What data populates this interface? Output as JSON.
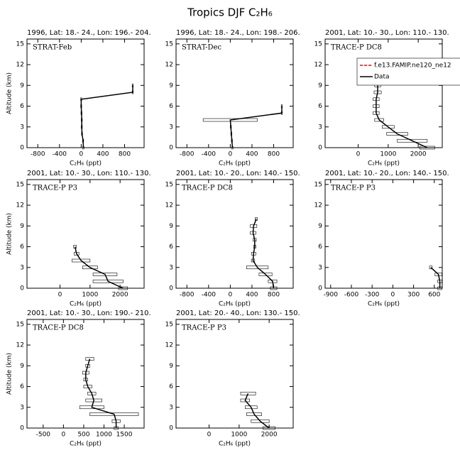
{
  "title": "Tropics DJF C₂H₆",
  "chart_data": [
    {
      "type": "line",
      "title": "1996, Lat: 18.- 24., Lon: 196.- 204.",
      "label": "STRAT-Feb",
      "xlabel": "C₂H₆ (ppt)",
      "ylabel": "Altitude (km)",
      "xlim": [
        -1000,
        1160
      ],
      "xticks": [
        -800,
        -400,
        0,
        400,
        800
      ],
      "ylim": [
        0,
        15.7
      ],
      "yticks": [
        0,
        3,
        6,
        9,
        12,
        15
      ],
      "series": [
        {
          "color": "#000000",
          "x": [
            40,
            35,
            15,
            10,
            10,
            5,
            0,
            0,
            950,
            950
          ],
          "values": [
            0,
            1,
            2,
            3,
            4,
            5,
            6,
            7,
            8,
            9
          ],
          "xerr": [
            10,
            10,
            10,
            10,
            10,
            10,
            10,
            10,
            10,
            10
          ]
        }
      ]
    },
    {
      "type": "line",
      "title": "1996, Lat: 18.- 24., Lon: 198.- 206.",
      "label": "STRAT-Dec",
      "xlabel": "C₂H₆ (ppt)",
      "xlim": [
        -1000,
        1160
      ],
      "xticks": [
        -800,
        -400,
        0,
        400,
        800
      ],
      "ylim": [
        0,
        15.7
      ],
      "yticks": [
        0,
        3,
        6,
        9,
        12,
        15
      ],
      "series": [
        {
          "color": "#000000",
          "x": [
            40,
            30,
            20,
            10,
            0,
            950,
            950
          ],
          "values": [
            0,
            1,
            2,
            3,
            4,
            5,
            6
          ],
          "xerr": [
            10,
            10,
            10,
            10,
            500,
            10,
            10
          ]
        }
      ]
    },
    {
      "type": "line",
      "title": "2001, Lat: 10.- 30., Lon: 110.- 130.",
      "label": "TRACE-P DC8",
      "xlabel": "C₂H₆ (ppt)",
      "legend": "upper right",
      "xlim": [
        -1100,
        2800
      ],
      "xticks": [
        0,
        1000,
        2000
      ],
      "ylim": [
        0,
        15.7
      ],
      "yticks": [
        0,
        3,
        6,
        9,
        12,
        15
      ],
      "series": [
        {
          "name": "f.e13.FAMIP.ne120_ne12",
          "color": "#ff0000",
          "dash": true,
          "x": [],
          "values": [],
          "xerr": []
        },
        {
          "name": "Data",
          "color": "#000000",
          "x": [
            2300,
            1800,
            1300,
            1000,
            700,
            600,
            600,
            600,
            650,
            650
          ],
          "values": [
            0,
            1,
            2,
            3,
            4,
            5,
            6,
            7,
            8,
            9
          ],
          "xerr": [
            250,
            500,
            350,
            200,
            150,
            100,
            100,
            100,
            120,
            100
          ]
        }
      ]
    },
    {
      "type": "line",
      "title": "2001, Lat: 10.- 30., Lon: 110.- 130.",
      "label": "TRACE-P P3",
      "xlabel": "C₂H₆ (ppt)",
      "ylabel": "Altitude (km)",
      "xlim": [
        -1100,
        2800
      ],
      "xticks": [
        0,
        1000,
        2000
      ],
      "ylim": [
        0,
        15.7
      ],
      "yticks": [
        0,
        3,
        6,
        9,
        12,
        15
      ],
      "series": [
        {
          "color": "#000000",
          "x": [
            2100,
            1600,
            1500,
            1000,
            700,
            550,
            500
          ],
          "values": [
            0,
            1,
            2,
            3,
            4,
            5,
            6
          ],
          "xerr": [
            150,
            500,
            400,
            250,
            300,
            80,
            50
          ]
        }
      ]
    },
    {
      "type": "line",
      "title": "2001, Lat: 10.- 20., Lon: 140.- 150.",
      "label": "TRACE-P DC8",
      "xlabel": "C₂H₆ (ppt)",
      "xlim": [
        -1000,
        1160
      ],
      "xticks": [
        -800,
        -400,
        0,
        400,
        800
      ],
      "ylim": [
        0,
        15.7
      ],
      "yticks": [
        0,
        3,
        6,
        9,
        12,
        15
      ],
      "series": [
        {
          "color": "#000000",
          "x": [
            800,
            780,
            650,
            500,
            420,
            430,
            450,
            450,
            420,
            430,
            480
          ],
          "values": [
            0,
            1,
            2,
            3,
            4,
            5,
            6,
            7,
            8,
            9,
            10
          ],
          "xerr": [
            60,
            80,
            120,
            200,
            30,
            40,
            20,
            30,
            50,
            60,
            20
          ]
        }
      ]
    },
    {
      "type": "line",
      "title": "2001, Lat: 10.- 20., Lon: 140.- 150.",
      "label": "TRACE-P P3",
      "xlabel": "C₂H₆ (ppt)",
      "xlim": [
        -980,
        715
      ],
      "xticks": [
        -900,
        -600,
        -300,
        0,
        300,
        600
      ],
      "ylim": [
        0,
        15.7
      ],
      "yticks": [
        0,
        3,
        6,
        9,
        12,
        15
      ],
      "series": [
        {
          "color": "#000000",
          "x": [
            680,
            680,
            660,
            550
          ],
          "values": [
            0,
            1,
            2,
            3
          ],
          "xerr": [
            30,
            30,
            50,
            20
          ]
        }
      ]
    },
    {
      "type": "line",
      "title": "2001, Lat: 10.- 30., Lon: 190.- 210.",
      "label": "TRACE-P DC8",
      "xlabel": "C₂H₆ (ppt)",
      "ylabel": "Altitude (km)",
      "xlim": [
        -900,
        1990
      ],
      "xticks": [
        -500,
        0,
        500,
        1000,
        1500
      ],
      "ylim": [
        0,
        15.7
      ],
      "yticks": [
        0,
        3,
        6,
        9,
        12,
        15
      ],
      "series": [
        {
          "color": "#000000",
          "x": [
            1300,
            1300,
            1250,
            700,
            750,
            700,
            600,
            550,
            550,
            600,
            650
          ],
          "values": [
            0,
            1,
            2,
            3,
            4,
            5,
            6,
            7,
            8,
            9,
            10
          ],
          "xerr": [
            50,
            100,
            600,
            300,
            200,
            100,
            100,
            50,
            80,
            50,
            100
          ]
        }
      ]
    },
    {
      "type": "line",
      "title": "2001, Lat: 20.- 40., Lon: 130.- 150.",
      "label": "TRACE-P P3",
      "xlabel": "C₂H₆ (ppt)",
      "xlim": [
        -1100,
        2800
      ],
      "xticks": [
        0,
        1000,
        2000
      ],
      "ylim": [
        0,
        15.7
      ],
      "yticks": [
        0,
        3,
        6,
        9,
        12,
        15
      ],
      "series": [
        {
          "color": "#000000",
          "x": [
            2000,
            1700,
            1500,
            1400,
            1200,
            1300
          ],
          "values": [
            0,
            1,
            2,
            3,
            4,
            5
          ],
          "xerr": [
            200,
            300,
            250,
            200,
            150,
            250
          ]
        }
      ]
    }
  ]
}
